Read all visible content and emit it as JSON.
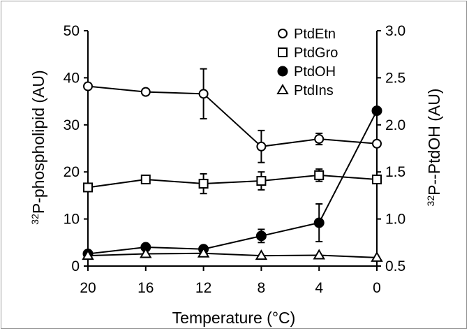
{
  "chart_data": {
    "type": "line",
    "xlabel": "Temperature (°C)",
    "ylabel_left": {
      "sup": "32",
      "text": "P-phospholipid (AU)"
    },
    "ylabel_right": {
      "sup": "32",
      "text": "P--PtdOH (AU)"
    },
    "x": [
      20,
      16,
      12,
      8,
      4,
      0
    ],
    "x_ticks": [
      "20",
      "16",
      "12",
      "8",
      "4",
      "0"
    ],
    "x_reversed": true,
    "xlim": [
      20,
      0
    ],
    "ylim_left": [
      0,
      50
    ],
    "y_ticks_left": [
      "0",
      "10",
      "20",
      "30",
      "40",
      "50"
    ],
    "ylim_right": [
      0.5,
      3.0
    ],
    "y_ticks_right": [
      "0.5",
      "1.0",
      "1.5",
      "2.0",
      "2.5",
      "3.0"
    ],
    "grid": false,
    "legend_position": "top-right",
    "series": [
      {
        "name": "PtdEtn",
        "marker": "open-circle",
        "axis": "left",
        "values": [
          38.2,
          37.0,
          36.6,
          25.4,
          27.0,
          26.0
        ],
        "errors": [
          null,
          null,
          5.3,
          3.4,
          1.2,
          null
        ]
      },
      {
        "name": "PtdGro",
        "marker": "open-square",
        "axis": "left",
        "values": [
          16.7,
          18.4,
          17.5,
          18.1,
          19.3,
          18.4
        ],
        "errors": [
          null,
          null,
          2.1,
          1.9,
          1.3,
          null
        ]
      },
      {
        "name": "PtdOH",
        "marker": "filled-circle",
        "axis": "right",
        "values": [
          0.63,
          0.7,
          0.68,
          0.82,
          0.96,
          2.15
        ],
        "errors": [
          null,
          null,
          null,
          0.07,
          0.2,
          null
        ]
      },
      {
        "name": "PtdIns",
        "marker": "open-triangle",
        "axis": "left",
        "values": [
          2.2,
          2.6,
          2.7,
          2.2,
          2.3,
          1.8
        ],
        "errors": [
          null,
          null,
          null,
          null,
          null,
          null
        ]
      }
    ]
  }
}
